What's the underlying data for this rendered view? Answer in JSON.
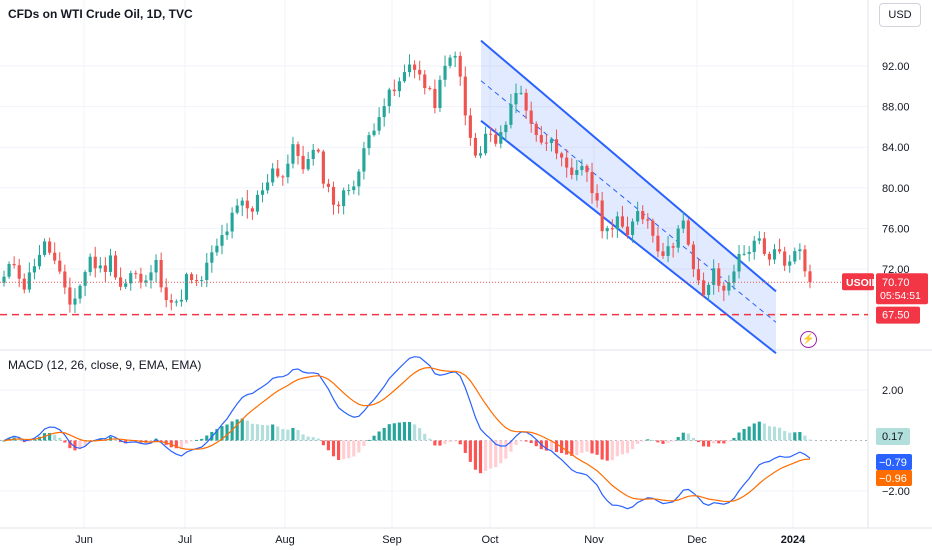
{
  "header": {
    "title": "CFDs on WTI Crude Oil, 1D, TVC",
    "currency_button": "USD"
  },
  "icons": {
    "flash": "lightning-icon"
  },
  "colors": {
    "up": "#26a69a",
    "down": "#ef5350",
    "channel": "#2962ff",
    "channel_fill": "#2962ff22",
    "support": "#f23645",
    "macd_line": "#2962ff",
    "signal_line": "#ff6d00",
    "hist_up_strong": "#26a69a",
    "hist_up_weak": "#b2dfdb",
    "hist_down_strong": "#ff5252",
    "hist_down_weak": "#ffcdd2",
    "price_tag": "#f23645",
    "macd_tag": "#2962ff",
    "signal_tag": "#ff6d00",
    "hist_tag": "#b2dfdb"
  },
  "chart_data": {
    "type": "candlestick",
    "symbol": "USOIL",
    "title": "CFDs on WTI Crude Oil, 1D, TVC",
    "price_axis": {
      "ticks": [
        92,
        88,
        84,
        80,
        76,
        72
      ],
      "tick_labels": [
        "92.00",
        "88.00",
        "84.00",
        "80.00",
        "76.00",
        "72.00"
      ]
    },
    "time_axis": {
      "labels": [
        "Jun",
        "Jul",
        "Aug",
        "Sep",
        "Oct",
        "Nov",
        "Dec",
        "2024"
      ]
    },
    "current_price": "70.70",
    "countdown": "05:54:51",
    "support_level": "67.50",
    "channel": {
      "upper": [
        [
          0,
          94.5
        ],
        [
          1,
          69.8
        ]
      ],
      "lower": [
        [
          0,
          86.6
        ],
        [
          1,
          63.7
        ]
      ]
    },
    "candles_path": [
      71.0,
      72.8,
      70.1,
      73.3,
      74.5,
      71.9,
      68.2,
      70.2,
      73.1,
      71.8,
      73.0,
      70.1,
      71.9,
      69.9,
      72.8,
      69.8,
      68.1,
      71.1,
      70.2,
      72.5,
      74.5,
      76.5,
      78.4,
      77.4,
      80.0,
      81.9,
      81.2,
      84.0,
      82.0,
      83.8,
      80.1,
      78.2,
      79.9,
      81.6,
      85.2,
      87.9,
      89.1,
      90.5,
      92.8,
      90.2,
      88.2,
      91.5,
      93.7,
      86.4,
      82.4,
      85.6,
      83.8,
      88.2,
      89.6,
      86.8,
      84.1,
      85.6,
      81.8,
      80.5,
      82.8,
      78.6,
      75.3,
      77.6,
      74.6,
      78.1,
      76.6,
      74.0,
      73.5,
      77.8,
      72.1,
      69.4,
      71.5,
      69.6,
      72.5,
      73.6,
      75.3,
      72.2,
      74.0,
      72.1,
      74.4,
      70.7
    ],
    "macd": {
      "label": "MACD (12, 26, close, 9, EMA, EMA)",
      "ticks": [
        2.0,
        -2.0
      ],
      "tick_labels": [
        "2.00",
        "−2.00"
      ],
      "histogram_value": "0.17",
      "macd_value": "−0.79",
      "signal_value": "−0.96"
    }
  }
}
